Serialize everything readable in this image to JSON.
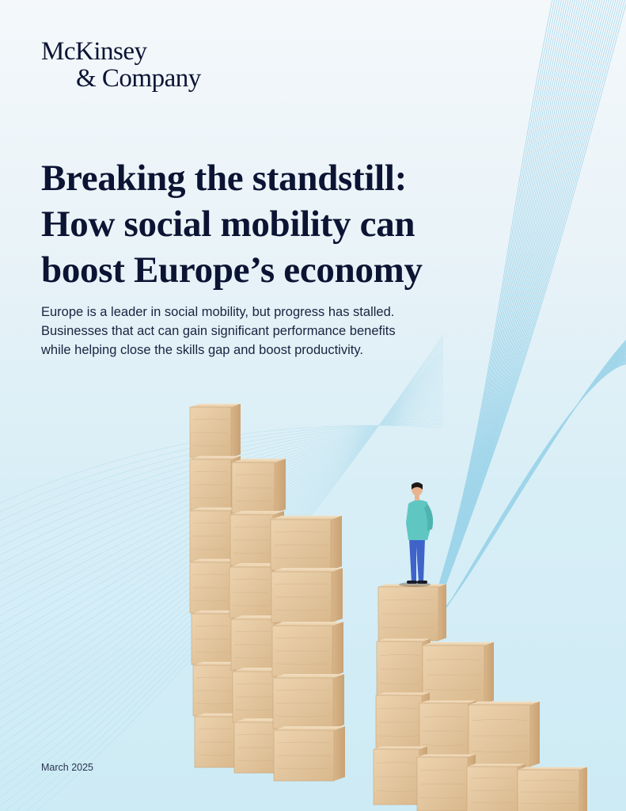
{
  "brand": {
    "line1": "McKinsey",
    "line2": "& Company"
  },
  "title_lines": [
    "Breaking the standstill:",
    "How social mobility can",
    "boost Europe’s economy"
  ],
  "subtitle_lines": [
    "Europe is a leader in social mobility, but progress has stalled.",
    "Businesses that act can gain significant performance benefits",
    "while helping close the skills gap and boost productivity."
  ],
  "date": "March 2025",
  "colors": {
    "title": "#0b1433",
    "wood": "#e3c9a4",
    "lines": "#8ccde6",
    "figure_shirt": "#5fc6c2",
    "figure_pants": "#3f63c9"
  }
}
